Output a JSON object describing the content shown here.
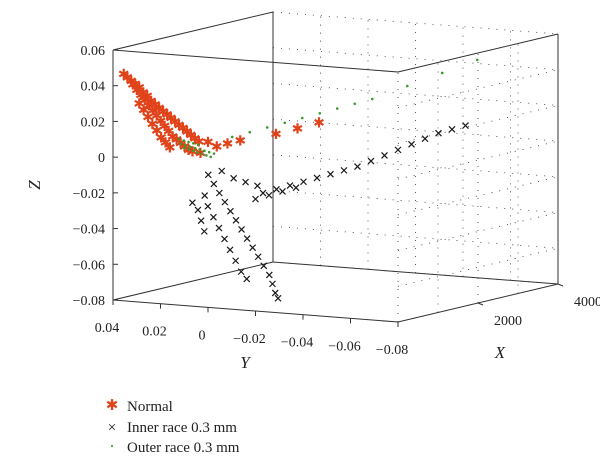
{
  "chart_data": {
    "type": "scatter",
    "dimensions": "3d",
    "title": "",
    "xlabel": "X",
    "ylabel": "Y",
    "zlabel": "Z",
    "xlim": [
      0,
      4000
    ],
    "ylim": [
      -0.08,
      0.04
    ],
    "zlim": [
      -0.08,
      0.06
    ],
    "x_ticks": [
      "2000",
      "4000"
    ],
    "y_ticks": [
      "0.04",
      "0.02",
      "0",
      "−0.02",
      "−0.04",
      "−0.06",
      "−0.08"
    ],
    "z_ticks": [
      "0.06",
      "0.04",
      "0.02",
      "0",
      "−0.02",
      "−0.04",
      "−0.06",
      "−0.08"
    ],
    "grid": true,
    "legend_position": "bottom-left",
    "series": [
      {
        "name": "Normal",
        "marker": "asterisk",
        "color": "#e0431a",
        "points": [
          [
            150,
            0.038,
            0.046
          ],
          [
            180,
            0.037,
            0.044
          ],
          [
            220,
            0.036,
            0.042
          ],
          [
            260,
            0.035,
            0.04
          ],
          [
            300,
            0.034,
            0.038
          ],
          [
            340,
            0.033,
            0.035
          ],
          [
            380,
            0.032,
            0.033
          ],
          [
            420,
            0.031,
            0.03
          ],
          [
            460,
            0.03,
            0.028
          ],
          [
            500,
            0.029,
            0.026
          ],
          [
            540,
            0.028,
            0.024
          ],
          [
            580,
            0.027,
            0.022
          ],
          [
            620,
            0.026,
            0.02
          ],
          [
            660,
            0.025,
            0.018
          ],
          [
            700,
            0.024,
            0.016
          ],
          [
            740,
            0.023,
            0.014
          ],
          [
            780,
            0.022,
            0.012
          ],
          [
            820,
            0.021,
            0.01
          ],
          [
            860,
            0.02,
            0.008
          ],
          [
            900,
            0.019,
            0.006
          ],
          [
            200,
            0.035,
            0.04
          ],
          [
            240,
            0.034,
            0.037
          ],
          [
            280,
            0.033,
            0.034
          ],
          [
            320,
            0.032,
            0.031
          ],
          [
            360,
            0.031,
            0.028
          ],
          [
            400,
            0.03,
            0.025
          ],
          [
            440,
            0.029,
            0.022
          ],
          [
            480,
            0.028,
            0.019
          ],
          [
            520,
            0.027,
            0.016
          ],
          [
            560,
            0.026,
            0.013
          ],
          [
            600,
            0.025,
            0.01
          ],
          [
            640,
            0.024,
            0.008
          ],
          [
            680,
            0.023,
            0.006
          ],
          [
            720,
            0.022,
            0.004
          ],
          [
            760,
            0.021,
            0.002
          ],
          [
            800,
            0.02,
            0.001
          ],
          [
            180,
            0.032,
            0.03
          ],
          [
            230,
            0.031,
            0.026
          ],
          [
            280,
            0.03,
            0.022
          ],
          [
            330,
            0.029,
            0.018
          ],
          [
            380,
            0.028,
            0.014
          ],
          [
            430,
            0.027,
            0.01
          ],
          [
            480,
            0.026,
            0.007
          ],
          [
            530,
            0.025,
            0.004
          ],
          [
            1200,
            0.012,
            0.004
          ],
          [
            1400,
            0.01,
            0.005
          ],
          [
            1700,
            0.0,
            0.008
          ],
          [
            2000,
            -0.004,
            0.01
          ],
          [
            2300,
            -0.008,
            0.012
          ],
          [
            950,
            0.016,
            0.006
          ],
          [
            1050,
            0.014,
            0.003
          ],
          [
            880,
            0.018,
            0.0
          ]
        ]
      },
      {
        "name": "Inner race 0.3 mm",
        "marker": "cross",
        "color": "#1a1a1a",
        "points": [
          [
            600,
            0.01,
            -0.01
          ],
          [
            620,
            0.008,
            -0.015
          ],
          [
            640,
            0.006,
            -0.02
          ],
          [
            660,
            0.004,
            -0.025
          ],
          [
            680,
            0.002,
            -0.03
          ],
          [
            700,
            0.0,
            -0.035
          ],
          [
            720,
            -0.002,
            -0.04
          ],
          [
            740,
            -0.004,
            -0.045
          ],
          [
            760,
            -0.006,
            -0.05
          ],
          [
            780,
            -0.008,
            -0.055
          ],
          [
            800,
            -0.01,
            -0.06
          ],
          [
            820,
            -0.012,
            -0.065
          ],
          [
            840,
            -0.013,
            -0.07
          ],
          [
            850,
            -0.014,
            -0.075
          ],
          [
            860,
            -0.015,
            -0.078
          ],
          [
            630,
            0.012,
            -0.022
          ],
          [
            650,
            0.011,
            -0.028
          ],
          [
            670,
            0.009,
            -0.034
          ],
          [
            690,
            0.007,
            -0.04
          ],
          [
            710,
            0.005,
            -0.046
          ],
          [
            730,
            0.003,
            -0.052
          ],
          [
            750,
            0.001,
            -0.058
          ],
          [
            770,
            -0.001,
            -0.064
          ],
          [
            790,
            -0.003,
            -0.068
          ],
          [
            580,
            0.014,
            -0.03
          ],
          [
            600,
            0.013,
            -0.036
          ],
          [
            620,
            0.012,
            -0.042
          ],
          [
            560,
            0.016,
            -0.026
          ],
          [
            900,
            -0.008,
            -0.02
          ],
          [
            1000,
            -0.012,
            -0.018
          ],
          [
            1100,
            -0.016,
            -0.016
          ],
          [
            1200,
            -0.02,
            -0.014
          ],
          [
            1300,
            -0.024,
            -0.012
          ],
          [
            1400,
            -0.028,
            -0.01
          ],
          [
            1500,
            -0.032,
            -0.008
          ],
          [
            1600,
            -0.036,
            -0.006
          ],
          [
            1700,
            -0.04,
            -0.003
          ],
          [
            1800,
            -0.044,
            0.0
          ],
          [
            1900,
            -0.048,
            0.003
          ],
          [
            2000,
            -0.052,
            0.006
          ],
          [
            2100,
            -0.056,
            0.009
          ],
          [
            2200,
            -0.06,
            0.012
          ],
          [
            2300,
            -0.064,
            0.014
          ],
          [
            2400,
            -0.068,
            0.016
          ],
          [
            950,
            -0.004,
            -0.024
          ],
          [
            1050,
            -0.008,
            -0.022
          ],
          [
            1150,
            -0.012,
            -0.02
          ],
          [
            1250,
            -0.016,
            -0.018
          ],
          [
            700,
            0.006,
            -0.008
          ],
          [
            760,
            0.002,
            -0.012
          ],
          [
            820,
            -0.002,
            -0.014
          ],
          [
            880,
            -0.006,
            -0.016
          ]
        ]
      },
      {
        "name": "Outer race 0.3 mm",
        "marker": "dot",
        "color": "#3a9a2a",
        "points": [
          [
            600,
            0.02,
            0.004
          ],
          [
            650,
            0.019,
            0.003
          ],
          [
            700,
            0.018,
            0.002
          ],
          [
            750,
            0.017,
            0.001
          ],
          [
            800,
            0.016,
            0.0
          ],
          [
            850,
            0.015,
            -0.001
          ],
          [
            900,
            0.014,
            -0.002
          ],
          [
            620,
            0.022,
            0.006
          ],
          [
            680,
            0.021,
            0.005
          ],
          [
            740,
            0.02,
            0.004
          ],
          [
            800,
            0.019,
            0.003
          ],
          [
            860,
            0.018,
            0.002
          ],
          [
            920,
            0.017,
            0.001
          ],
          [
            980,
            0.016,
            0.0
          ],
          [
            1040,
            0.015,
            -0.001
          ],
          [
            700,
            0.024,
            0.008
          ],
          [
            760,
            0.023,
            0.007
          ],
          [
            820,
            0.022,
            0.006
          ],
          [
            880,
            0.021,
            0.005
          ],
          [
            940,
            0.02,
            0.004
          ],
          [
            1200,
            0.01,
            0.008
          ],
          [
            1400,
            0.006,
            0.01
          ],
          [
            1600,
            0.002,
            0.012
          ],
          [
            1800,
            -0.002,
            0.014
          ],
          [
            2000,
            -0.006,
            0.016
          ],
          [
            2200,
            -0.01,
            0.018
          ],
          [
            2400,
            -0.014,
            0.02
          ],
          [
            2600,
            -0.018,
            0.022
          ],
          [
            2800,
            -0.022,
            0.024
          ],
          [
            3200,
            -0.03,
            0.03
          ],
          [
            3600,
            -0.038,
            0.036
          ],
          [
            4000,
            -0.046,
            0.042
          ]
        ]
      }
    ]
  },
  "legend": {
    "items": [
      {
        "label": "Normal",
        "symbol": "✱",
        "color": "#e0431a"
      },
      {
        "label": "Inner race 0.3 mm",
        "symbol": "×",
        "color": "#1a1a1a"
      },
      {
        "label": "Outer race 0.3 mm",
        "symbol": "·",
        "color": "#3a9a2a"
      }
    ]
  }
}
